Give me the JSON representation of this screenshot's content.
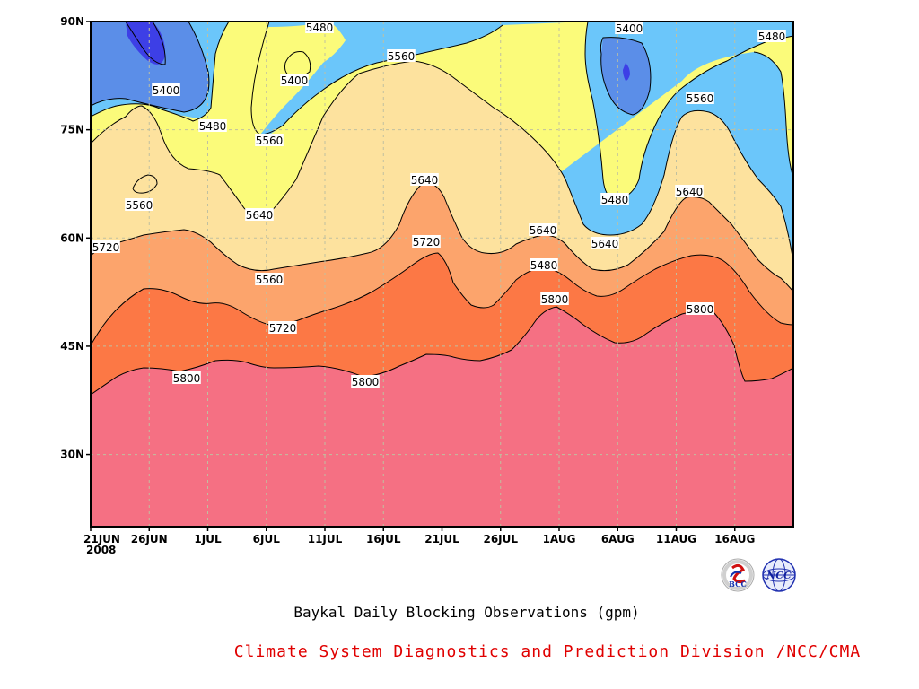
{
  "chart_data": {
    "type": "contour",
    "title": "Baykal Daily Blocking Observations (gpm)",
    "credit": "Climate System Diagnostics and Prediction Division /NCC/CMA",
    "x_ticks": [
      "21JUN",
      "26JUN",
      "1JUL",
      "6JUL",
      "11JUL",
      "16JUL",
      "21JUL",
      "26JUL",
      "1AUG",
      "6AUG",
      "11AUG",
      "16AUG"
    ],
    "x_year": "2008",
    "x_range": [
      "2008-06-21",
      "2008-08-20"
    ],
    "y_ticks": [
      "30N",
      "45N",
      "60N",
      "75N",
      "90N"
    ],
    "y_range": [
      20,
      90
    ],
    "contour_levels": [
      5320,
      5400,
      5480,
      5560,
      5640,
      5720,
      5800
    ],
    "fill_colors": [
      "#3d3fe6",
      "#5b8ee8",
      "#6bc6fa",
      "#fbfb7a",
      "#fde29e",
      "#fca46c",
      "#fc7845",
      "#f57083"
    ],
    "contour_labels": [
      "5480",
      "5400",
      "5400",
      "5480",
      "5560",
      "5400",
      "5480",
      "5480",
      "5560",
      "5560",
      "5560",
      "5640",
      "5640",
      "5640",
      "5720",
      "5640",
      "5720",
      "5560",
      "5480",
      "5640",
      "5720",
      "5800",
      "5720",
      "5800",
      "5800",
      "5800"
    ],
    "logos": [
      "BCC",
      "NCC"
    ]
  }
}
